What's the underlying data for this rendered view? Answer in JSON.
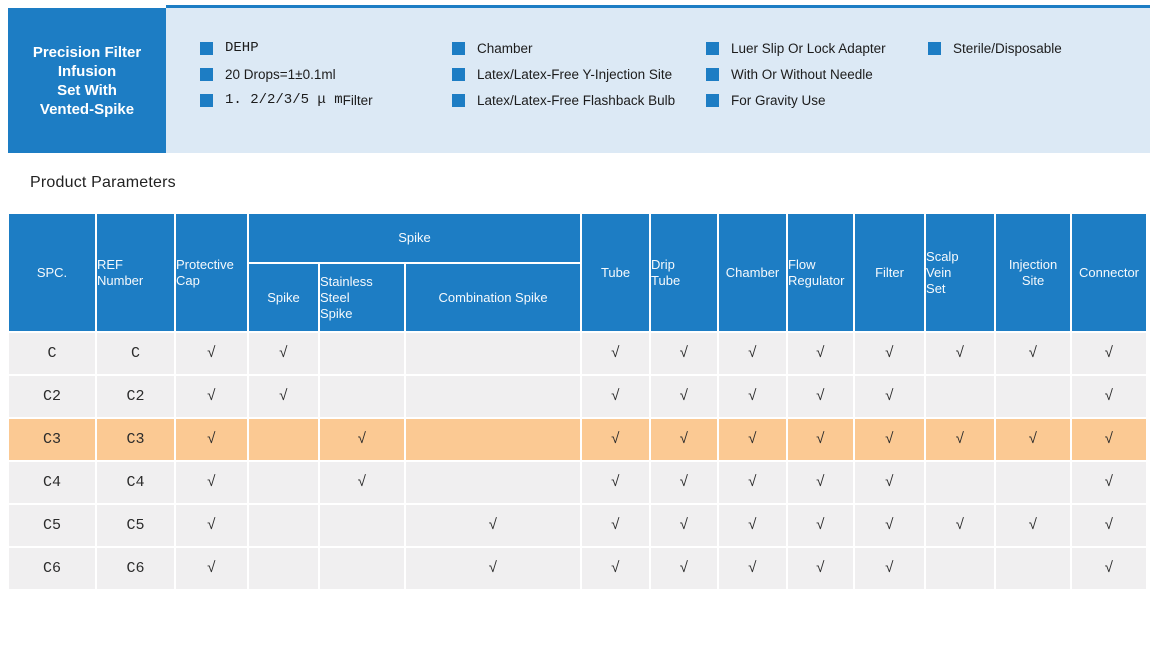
{
  "colors": {
    "accent_blue": "#1d7dc4",
    "light_blue_panel": "#dce9f5",
    "highlight_orange": "#fbc993",
    "row_gray": "#f0eff0"
  },
  "header": {
    "title_lines": [
      "Precision Filter",
      "Infusion",
      "Set With",
      "Vented-Spike"
    ],
    "features": [
      {
        "items": [
          {
            "segments": [
              {
                "t": "DEHP",
                "mono": true
              }
            ]
          },
          {
            "segments": [
              {
                "t": "20 Drops=1±0.1ml"
              }
            ]
          },
          {
            "segments": [
              {
                "t": "1. 2/2/3/5 μ m",
                "mono": true
              },
              {
                "t": " Filter"
              }
            ]
          }
        ]
      },
      {
        "items": [
          {
            "segments": [
              {
                "t": "Chamber"
              }
            ]
          },
          {
            "segments": [
              {
                "t": "Latex/Latex-Free Y-Injection Site"
              }
            ]
          },
          {
            "segments": [
              {
                "t": "Latex/Latex-Free Flashback Bulb"
              }
            ]
          }
        ]
      },
      {
        "items": [
          {
            "segments": [
              {
                "t": "Luer Slip Or Lock Adapter"
              }
            ]
          },
          {
            "segments": [
              {
                "t": "With Or Without Needle"
              }
            ]
          },
          {
            "segments": [
              {
                "t": "For Gravity Use"
              }
            ]
          }
        ]
      },
      {
        "items": [
          {
            "segments": [
              {
                "t": "Sterile/Disposable"
              }
            ]
          }
        ]
      }
    ]
  },
  "section_title": "Product Parameters",
  "table": {
    "check_mark": "√",
    "columns": {
      "spc": "SPC.",
      "ref": "REF\nNumber",
      "protective": "Protective\nCap",
      "spike_group": "Spike",
      "spike": "Spike",
      "stainless": "Stainless\nSteel\n Spike",
      "combination": "Combination Spike",
      "tube": "Tube",
      "drip": "Drip\nTube",
      "chamber": "Chamber",
      "flow": "Flow\nRegulator",
      "filter": "Filter",
      "scalp": "Scalp\nVein\nSet",
      "injection": "Injection\nSite",
      "connector": "Connector"
    },
    "rows": [
      {
        "spc": "C",
        "ref": "C",
        "highlight": false,
        "cells": [
          "√",
          "√",
          "",
          "",
          "√",
          "√",
          "√",
          "√",
          "√",
          "√",
          "√",
          "√"
        ]
      },
      {
        "spc": "C2",
        "ref": "C2",
        "highlight": false,
        "cells": [
          "√",
          "√",
          "",
          "",
          "√",
          "√",
          "√",
          "√",
          "√",
          "",
          "",
          "√"
        ]
      },
      {
        "spc": "C3",
        "ref": "C3",
        "highlight": true,
        "cells": [
          "√",
          "",
          "√",
          "",
          "√",
          "√",
          "√",
          "√",
          "√",
          "√",
          "√",
          "√"
        ]
      },
      {
        "spc": "C4",
        "ref": "C4",
        "highlight": false,
        "cells": [
          "√",
          "",
          "√",
          "",
          "√",
          "√",
          "√",
          "√",
          "√",
          "",
          "",
          "√"
        ]
      },
      {
        "spc": "C5",
        "ref": "C5",
        "highlight": false,
        "cells": [
          "√",
          "",
          "",
          "√",
          "√",
          "√",
          "√",
          "√",
          "√",
          "√",
          "√",
          "√"
        ]
      },
      {
        "spc": "C6",
        "ref": "C6",
        "highlight": false,
        "cells": [
          "√",
          "",
          "",
          "√",
          "√",
          "√",
          "√",
          "√",
          "√",
          "",
          "",
          "√"
        ]
      }
    ]
  }
}
